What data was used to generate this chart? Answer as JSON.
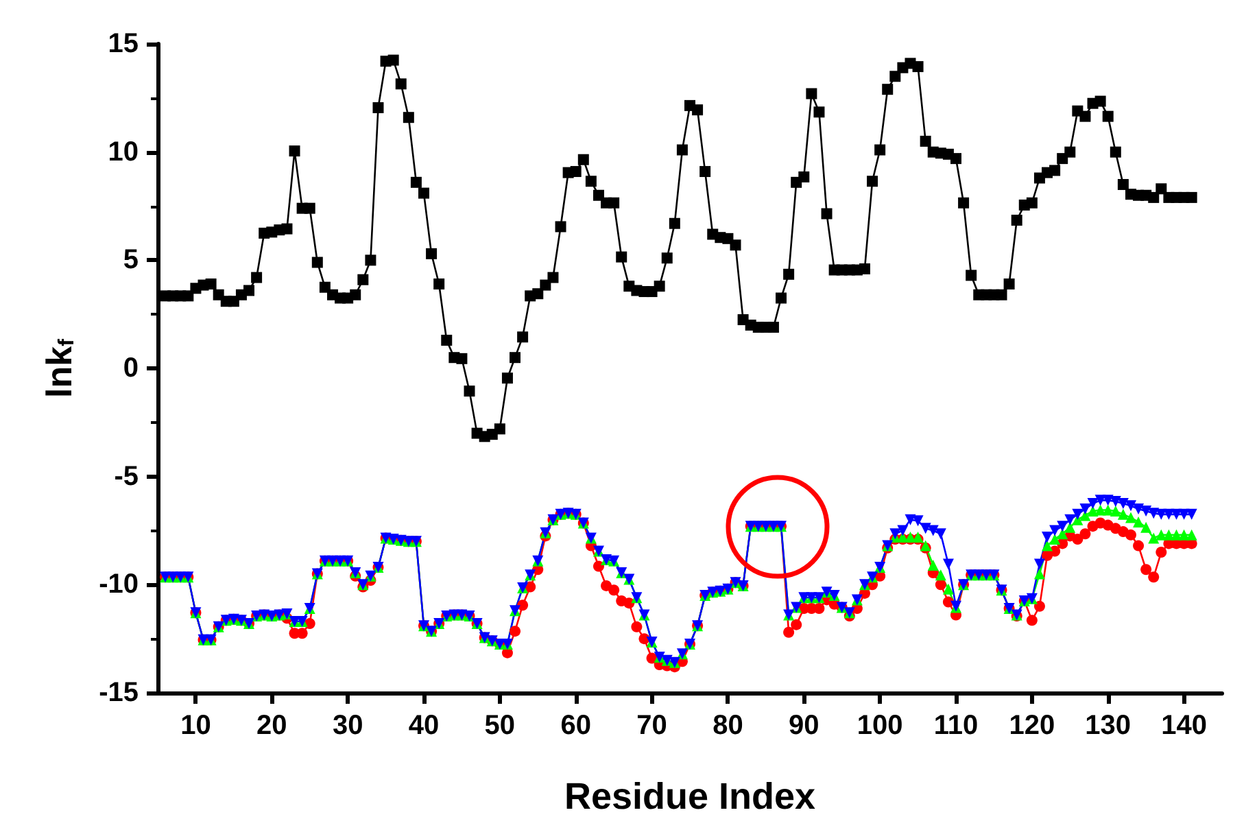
{
  "chart_data": {
    "type": "line",
    "xlabel": "Residue Index",
    "ylabel": "lnk$_{f}$",
    "x": [
      6,
      7,
      8,
      9,
      10,
      11,
      12,
      13,
      14,
      15,
      16,
      17,
      18,
      19,
      20,
      21,
      22,
      23,
      24,
      25,
      26,
      27,
      28,
      29,
      30,
      31,
      32,
      33,
      34,
      35,
      36,
      37,
      38,
      39,
      40,
      41,
      42,
      43,
      44,
      45,
      46,
      47,
      48,
      49,
      50,
      51,
      52,
      53,
      54,
      55,
      56,
      57,
      58,
      59,
      60,
      61,
      62,
      63,
      64,
      65,
      66,
      67,
      68,
      69,
      70,
      71,
      72,
      73,
      74,
      75,
      76,
      77,
      78,
      79,
      80,
      81,
      82,
      83,
      84,
      85,
      86,
      87,
      88,
      89,
      90,
      91,
      92,
      93,
      94,
      95,
      96,
      97,
      98,
      99,
      100,
      101,
      102,
      103,
      104,
      105,
      106,
      107,
      108,
      109,
      110,
      111,
      112,
      113,
      114,
      115,
      116,
      117,
      118,
      119,
      120,
      121,
      122,
      123,
      124,
      125,
      126,
      127,
      128,
      129,
      130,
      131,
      132,
      133,
      134,
      135,
      136,
      137,
      138,
      139,
      140,
      141
    ],
    "series": [
      {
        "color": "#000000",
        "marker": "square",
        "values": [
          3.35,
          3.35,
          3.35,
          3.35,
          3.7,
          3.85,
          3.9,
          3.4,
          3.1,
          3.1,
          3.4,
          3.6,
          4.2,
          6.25,
          6.3,
          6.4,
          6.45,
          10.05,
          7.4,
          7.4,
          4.9,
          3.75,
          3.4,
          3.25,
          3.25,
          3.4,
          4.1,
          5.0,
          12.05,
          14.2,
          14.25,
          13.15,
          11.6,
          8.6,
          8.1,
          5.3,
          3.9,
          1.3,
          0.5,
          0.45,
          -1.05,
          -3.0,
          -3.15,
          -3.05,
          -2.8,
          -0.45,
          0.5,
          1.45,
          3.35,
          3.45,
          3.85,
          4.2,
          6.55,
          9.05,
          9.1,
          9.65,
          8.65,
          8.0,
          7.65,
          7.65,
          5.15,
          3.8,
          3.6,
          3.55,
          3.55,
          3.8,
          5.1,
          6.7,
          10.1,
          12.15,
          11.95,
          9.1,
          6.2,
          6.05,
          6.0,
          5.7,
          2.25,
          2.0,
          1.9,
          1.9,
          1.9,
          3.25,
          4.35,
          8.6,
          8.85,
          12.7,
          11.85,
          7.15,
          4.55,
          4.55,
          4.55,
          4.55,
          4.6,
          8.65,
          10.1,
          12.9,
          13.5,
          13.9,
          14.1,
          13.95,
          10.5,
          10.0,
          9.95,
          9.9,
          9.7,
          7.65,
          4.3,
          3.4,
          3.4,
          3.4,
          3.4,
          3.9,
          6.85,
          7.55,
          7.65,
          8.8,
          9.05,
          9.15,
          9.7,
          10.0,
          11.9,
          11.65,
          12.25,
          12.35,
          11.65,
          10.0,
          8.5,
          8.05,
          8.0,
          8.0,
          7.9,
          8.3,
          7.9,
          7.9,
          7.9,
          7.9
        ]
      },
      {
        "color": "#ff0000",
        "marker": "circle",
        "values": [
          -9.65,
          -9.65,
          -9.65,
          -9.65,
          -11.3,
          -12.55,
          -12.55,
          -11.95,
          -11.65,
          -11.6,
          -11.65,
          -11.8,
          -11.45,
          -11.4,
          -11.45,
          -11.4,
          -11.55,
          -12.25,
          -12.25,
          -11.8,
          -9.5,
          -8.9,
          -8.9,
          -8.9,
          -8.9,
          -9.6,
          -10.1,
          -9.8,
          -9.2,
          -7.85,
          -7.9,
          -7.95,
          -8.0,
          -8.0,
          -11.9,
          -12.15,
          -11.8,
          -11.45,
          -11.4,
          -11.4,
          -11.45,
          -11.8,
          -12.45,
          -12.6,
          -12.75,
          -13.15,
          -12.15,
          -10.95,
          -10.1,
          -9.3,
          -7.75,
          -7.0,
          -6.75,
          -6.7,
          -6.75,
          -7.15,
          -8.2,
          -9.15,
          -10.05,
          -10.25,
          -10.75,
          -10.85,
          -11.95,
          -12.5,
          -13.4,
          -13.7,
          -13.75,
          -13.8,
          -13.55,
          -12.75,
          -11.9,
          -10.5,
          -10.35,
          -10.3,
          -10.2,
          -9.9,
          -10.05,
          -7.3,
          -7.3,
          -7.3,
          -7.3,
          -7.3,
          -12.2,
          -11.85,
          -11.1,
          -11.1,
          -11.1,
          -10.7,
          -10.9,
          -11.05,
          -11.45,
          -11.1,
          -10.4,
          -10.0,
          -9.6,
          -8.3,
          -7.9,
          -7.9,
          -7.9,
          -7.9,
          -8.3,
          -9.45,
          -10.0,
          -10.8,
          -11.4,
          -10.0,
          -9.55,
          -9.55,
          -9.55,
          -9.55,
          -10.25,
          -11.1,
          -11.45,
          -10.75,
          -11.65,
          -11.0,
          -8.65,
          -8.45,
          -8.1,
          -7.75,
          -7.9,
          -7.65,
          -7.3,
          -7.15,
          -7.25,
          -7.4,
          -7.55,
          -7.7,
          -8.2,
          -9.3,
          -9.65,
          -8.5,
          -8.1,
          -8.1,
          -8.1,
          -8.1
        ]
      },
      {
        "color": "#00ff00",
        "marker": "triangle",
        "values": [
          -9.65,
          -9.65,
          -9.65,
          -9.65,
          -11.3,
          -12.55,
          -12.55,
          -11.95,
          -11.65,
          -11.6,
          -11.65,
          -11.8,
          -11.45,
          -11.4,
          -11.45,
          -11.4,
          -11.35,
          -11.7,
          -11.7,
          -11.1,
          -9.5,
          -8.9,
          -8.9,
          -8.9,
          -8.9,
          -9.45,
          -10.0,
          -9.6,
          -9.2,
          -7.85,
          -7.9,
          -7.95,
          -8.0,
          -8.0,
          -11.9,
          -12.15,
          -11.8,
          -11.45,
          -11.4,
          -11.4,
          -11.45,
          -11.8,
          -12.45,
          -12.6,
          -12.75,
          -12.75,
          -11.2,
          -10.15,
          -9.55,
          -8.9,
          -7.6,
          -7.0,
          -6.75,
          -6.7,
          -6.75,
          -7.15,
          -7.85,
          -8.45,
          -8.85,
          -8.9,
          -9.45,
          -9.75,
          -10.6,
          -11.4,
          -12.65,
          -13.35,
          -13.5,
          -13.6,
          -13.2,
          -12.75,
          -11.9,
          -10.5,
          -10.35,
          -10.3,
          -10.2,
          -9.9,
          -10.05,
          -7.3,
          -7.3,
          -7.3,
          -7.3,
          -7.3,
          -11.4,
          -11.05,
          -10.6,
          -10.6,
          -10.6,
          -10.35,
          -10.5,
          -11.05,
          -11.3,
          -10.7,
          -10.0,
          -9.65,
          -9.2,
          -8.2,
          -7.8,
          -7.8,
          -7.8,
          -7.8,
          -8.2,
          -9.1,
          -9.55,
          -10.2,
          -11.05,
          -10.0,
          -9.55,
          -9.55,
          -9.55,
          -9.55,
          -10.25,
          -11.1,
          -11.4,
          -10.75,
          -10.65,
          -9.5,
          -8.2,
          -7.9,
          -7.65,
          -7.35,
          -7.0,
          -6.8,
          -6.6,
          -6.55,
          -6.55,
          -6.6,
          -6.75,
          -6.9,
          -7.1,
          -7.35,
          -7.85,
          -7.7,
          -7.7,
          -7.7,
          -7.7,
          -7.7
        ]
      },
      {
        "color": "#0000ff",
        "marker": "triangle-down",
        "values": [
          -9.65,
          -9.65,
          -9.65,
          -9.65,
          -11.3,
          -12.55,
          -12.55,
          -11.95,
          -11.65,
          -11.6,
          -11.65,
          -11.8,
          -11.45,
          -11.4,
          -11.45,
          -11.4,
          -11.35,
          -11.7,
          -11.7,
          -11.1,
          -9.5,
          -8.9,
          -8.9,
          -8.9,
          -8.9,
          -9.45,
          -10.0,
          -9.6,
          -9.2,
          -7.85,
          -7.9,
          -7.95,
          -8.0,
          -8.0,
          -11.9,
          -12.15,
          -11.8,
          -11.45,
          -11.4,
          -11.4,
          -11.45,
          -11.8,
          -12.45,
          -12.6,
          -12.75,
          -12.75,
          -11.2,
          -10.15,
          -9.55,
          -8.9,
          -7.6,
          -7.0,
          -6.75,
          -6.7,
          -6.75,
          -7.15,
          -7.85,
          -8.45,
          -8.85,
          -8.9,
          -9.45,
          -9.75,
          -10.6,
          -11.4,
          -12.65,
          -13.35,
          -13.5,
          -13.6,
          -13.2,
          -12.75,
          -11.9,
          -10.5,
          -10.35,
          -10.3,
          -10.2,
          -9.9,
          -10.05,
          -7.3,
          -7.3,
          -7.3,
          -7.3,
          -7.3,
          -11.4,
          -11.05,
          -10.6,
          -10.6,
          -10.6,
          -10.35,
          -10.5,
          -11.05,
          -11.3,
          -10.7,
          -10.0,
          -9.65,
          -9.2,
          -8.2,
          -7.65,
          -7.5,
          -7.0,
          -7.05,
          -7.4,
          -7.5,
          -7.65,
          -9.05,
          -11.0,
          -10.0,
          -9.55,
          -9.55,
          -9.55,
          -9.55,
          -10.25,
          -11.1,
          -11.4,
          -10.75,
          -10.65,
          -9.05,
          -7.8,
          -7.5,
          -7.3,
          -7.0,
          -6.75,
          -6.5,
          -6.25,
          -6.1,
          -6.1,
          -6.15,
          -6.25,
          -6.35,
          -6.5,
          -6.6,
          -6.7,
          -6.75,
          -6.75,
          -6.75,
          -6.75,
          -6.75
        ]
      }
    ],
    "xlim": [
      5,
      145
    ],
    "xticks": [
      10,
      20,
      30,
      40,
      50,
      60,
      70,
      80,
      90,
      100,
      110,
      120,
      130,
      140
    ],
    "ylim": [
      -15,
      15
    ],
    "yticks": [
      -15,
      -10,
      -5,
      0,
      5,
      10,
      15
    ],
    "line_style": "solid"
  }
}
